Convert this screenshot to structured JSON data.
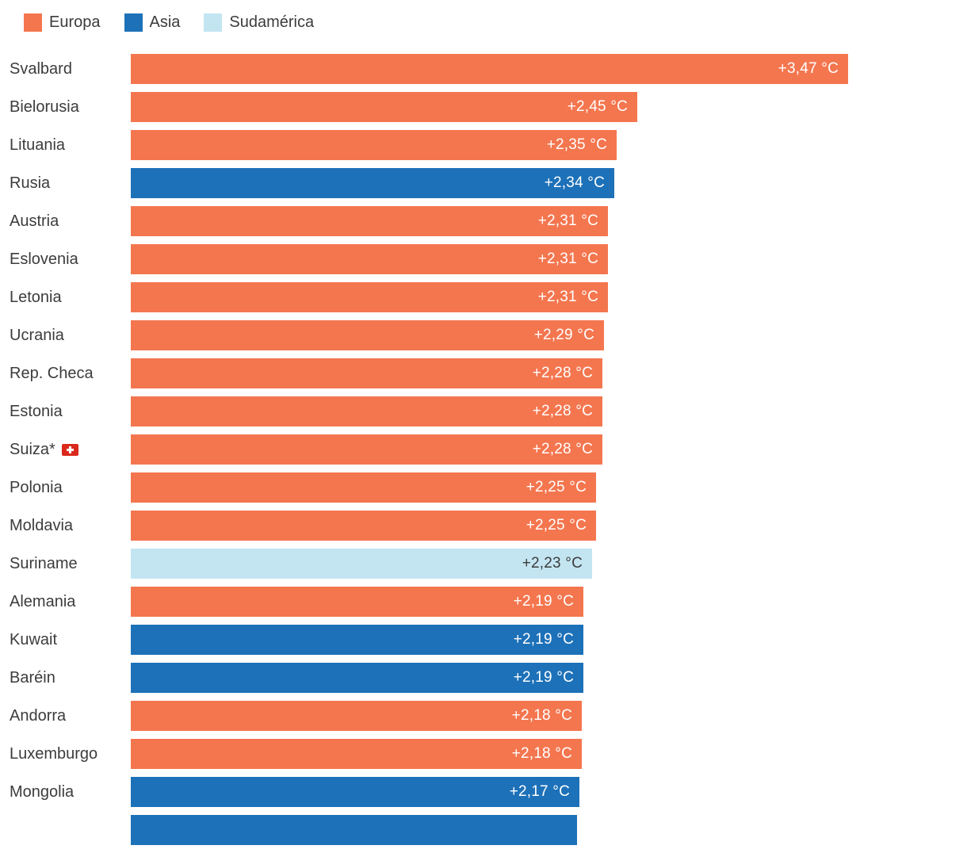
{
  "chart_data": {
    "type": "bar",
    "orientation": "horizontal",
    "unit": "°C",
    "xlim": [
      0,
      3.47
    ],
    "legend_position": "top",
    "grid": false,
    "legend": [
      {
        "label": "Europa",
        "color": "#F4764F",
        "value_text_color": "#FFFFFF"
      },
      {
        "label": "Asia",
        "color": "#1D71B8",
        "value_text_color": "#FFFFFF"
      },
      {
        "label": "Sudamérica",
        "color": "#C3E5F2",
        "value_text_color": "#3C3C3C"
      }
    ],
    "rows": [
      {
        "label": "Svalbard",
        "region": "Europa",
        "value": 3.47,
        "value_label": "+3,47 °C"
      },
      {
        "label": "Bielorusia",
        "region": "Europa",
        "value": 2.45,
        "value_label": "+2,45 °C"
      },
      {
        "label": "Lituania",
        "region": "Europa",
        "value": 2.35,
        "value_label": "+2,35 °C"
      },
      {
        "label": "Rusia",
        "region": "Asia",
        "value": 2.34,
        "value_label": "+2,34 °C"
      },
      {
        "label": "Austria",
        "region": "Europa",
        "value": 2.31,
        "value_label": "+2,31 °C"
      },
      {
        "label": "Eslovenia",
        "region": "Europa",
        "value": 2.31,
        "value_label": "+2,31 °C"
      },
      {
        "label": "Letonia",
        "region": "Europa",
        "value": 2.31,
        "value_label": "+2,31 °C"
      },
      {
        "label": "Ucrania",
        "region": "Europa",
        "value": 2.29,
        "value_label": "+2,29 °C"
      },
      {
        "label": "Rep. Checa",
        "region": "Europa",
        "value": 2.28,
        "value_label": "+2,28 °C"
      },
      {
        "label": "Estonia",
        "region": "Europa",
        "value": 2.28,
        "value_label": "+2,28 °C"
      },
      {
        "label": "Suiza*",
        "region": "Europa",
        "value": 2.28,
        "value_label": "+2,28 °C",
        "flag": "swiss"
      },
      {
        "label": "Polonia",
        "region": "Europa",
        "value": 2.25,
        "value_label": "+2,25 °C"
      },
      {
        "label": "Moldavia",
        "region": "Europa",
        "value": 2.25,
        "value_label": "+2,25 °C"
      },
      {
        "label": "Suriname",
        "region": "Sudamérica",
        "value": 2.23,
        "value_label": "+2,23 °C"
      },
      {
        "label": "Alemania",
        "region": "Europa",
        "value": 2.19,
        "value_label": "+2,19 °C"
      },
      {
        "label": "Kuwait",
        "region": "Asia",
        "value": 2.19,
        "value_label": "+2,19 °C"
      },
      {
        "label": "Baréin",
        "region": "Asia",
        "value": 2.19,
        "value_label": "+2,19 °C"
      },
      {
        "label": "Andorra",
        "region": "Europa",
        "value": 2.18,
        "value_label": "+2,18 °C"
      },
      {
        "label": "Luxemburgo",
        "region": "Europa",
        "value": 2.18,
        "value_label": "+2,18 °C"
      },
      {
        "label": "Mongolia",
        "region": "Asia",
        "value": 2.17,
        "value_label": "+2,17 °C"
      },
      {
        "label": "",
        "region": "Asia",
        "value": 2.16,
        "value_label": "",
        "partial": true
      }
    ]
  }
}
